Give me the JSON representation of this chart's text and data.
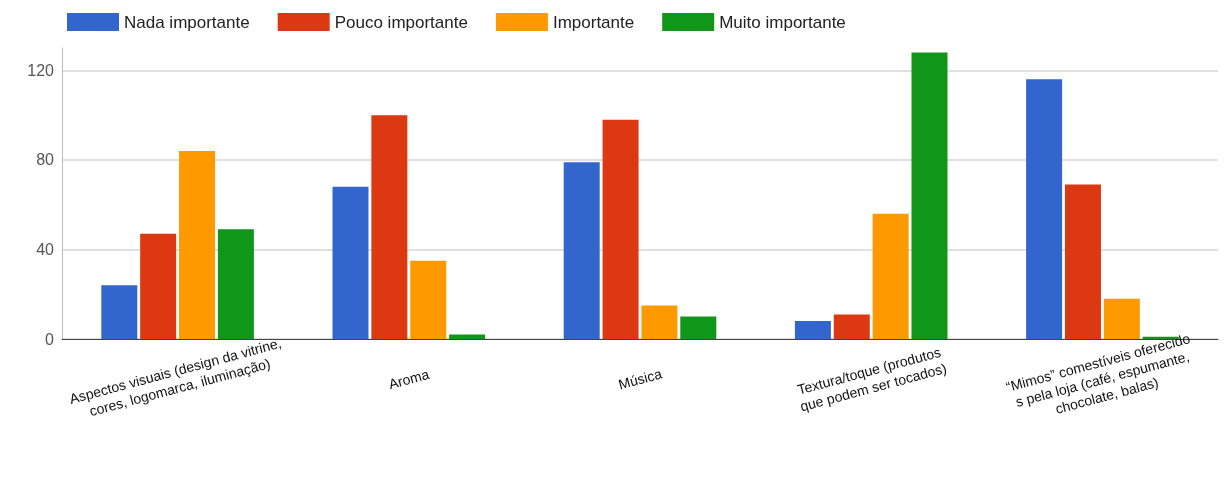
{
  "chart_data": {
    "type": "bar",
    "categories": [
      "Aspectos visuais (design da vitrine,\ncores, logomarca, iluminação)",
      "Aroma",
      "Música",
      "Textura/toque (produtos\nque podem ser tocados)",
      "“Mimos” comestíveis oferecido\ns pela loja (café, espumante,\nchocolate, balas)"
    ],
    "series": [
      {
        "name": "Nada importante",
        "color": "#3366cc",
        "values": [
          24,
          68,
          79,
          8,
          116
        ]
      },
      {
        "name": "Pouco importante",
        "color": "#dc3912",
        "values": [
          47,
          100,
          98,
          11,
          69
        ]
      },
      {
        "name": "Importante",
        "color": "#ff9900",
        "values": [
          84,
          35,
          15,
          56,
          18
        ]
      },
      {
        "name": "Muito importante",
        "color": "#109618",
        "values": [
          49,
          2,
          10,
          128,
          1
        ]
      }
    ],
    "ylim": [
      0,
      130
    ],
    "yticks": [
      0,
      40,
      80,
      120
    ],
    "grid": "y",
    "legend": "top left"
  }
}
